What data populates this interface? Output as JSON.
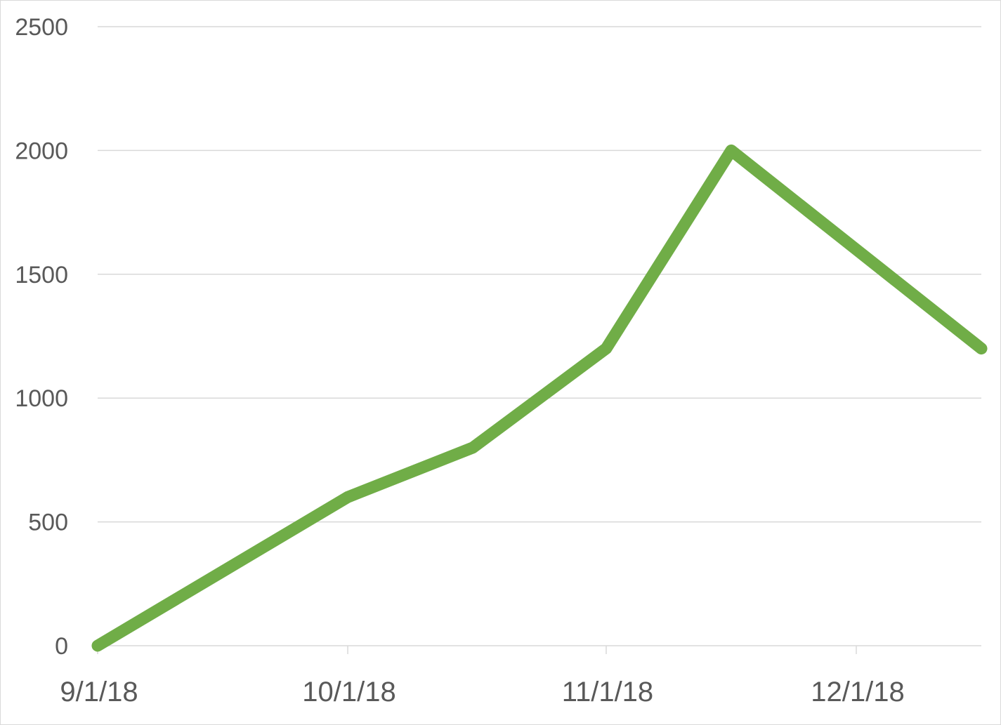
{
  "chart_data": {
    "type": "line",
    "title": "",
    "xlabel": "",
    "ylabel": "",
    "x_axis_type": "date",
    "x_range": [
      "2018-09-01",
      "2018-12-16"
    ],
    "ylim": [
      0,
      2500
    ],
    "y_ticks": [
      0,
      500,
      1000,
      1500,
      2000,
      2500
    ],
    "y_tick_labels": [
      "0",
      "500",
      "1000",
      "1500",
      "2000",
      "2500"
    ],
    "x_ticks": [
      "2018-09-01",
      "2018-10-01",
      "2018-11-01",
      "2018-12-01"
    ],
    "x_tick_labels": [
      "9/1/18",
      "10/1/18",
      "11/1/18",
      "12/1/18"
    ],
    "grid": {
      "horizontal": true,
      "vertical": false
    },
    "legend": "none",
    "series": [
      {
        "color": "#70ad47",
        "x": [
          "2018-09-01",
          "2018-09-16",
          "2018-10-01",
          "2018-10-16",
          "2018-11-01",
          "2018-11-16",
          "2018-12-01",
          "2018-12-16"
        ],
        "y": [
          0,
          300,
          600,
          800,
          1200,
          2000,
          1600,
          1200
        ]
      }
    ]
  }
}
